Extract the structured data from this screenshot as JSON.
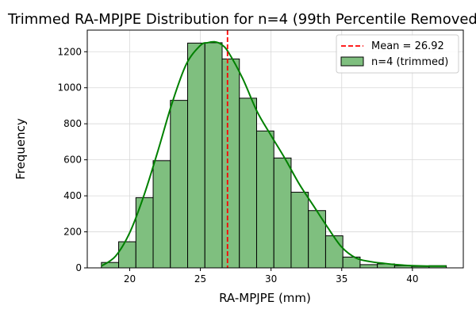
{
  "chart_data": {
    "type": "bar",
    "title": "Trimmed RA-MPJPE Distribution for n=4 (99th Percentile Removed)",
    "xlabel": "RA-MPJPE (mm)",
    "ylabel": "Frequency",
    "xlim": [
      17.0,
      43.6
    ],
    "ylim": [
      0,
      1320
    ],
    "xticks": [
      20,
      25,
      30,
      35,
      40
    ],
    "yticks": [
      0,
      200,
      400,
      600,
      800,
      1000,
      1200
    ],
    "grid": true,
    "legend_position": "top-right",
    "bins": {
      "edges": [
        18.0,
        19.22,
        20.44,
        21.66,
        22.88,
        24.1,
        25.32,
        26.54,
        27.76,
        28.98,
        30.2,
        31.42,
        32.64,
        33.86,
        35.08,
        36.3,
        37.52,
        38.74,
        39.96,
        41.18,
        42.4
      ],
      "counts": [
        30,
        145,
        390,
        595,
        930,
        1248,
        1250,
        1160,
        942,
        760,
        610,
        420,
        318,
        178,
        60,
        18,
        22,
        12,
        8,
        12
      ]
    },
    "kde": {
      "x": [
        18.0,
        19.0,
        20.0,
        21.0,
        22.0,
        23.0,
        24.0,
        25.0,
        25.5,
        26.0,
        26.5,
        27.0,
        28.0,
        29.0,
        30.0,
        31.0,
        32.0,
        33.0,
        34.0,
        35.0,
        36.0,
        37.0,
        38.0,
        39.0,
        40.0,
        41.0,
        42.4
      ],
      "y": [
        10,
        65,
        195,
        400,
        650,
        915,
        1130,
        1235,
        1250,
        1255,
        1240,
        1195,
        1050,
        870,
        735,
        605,
        465,
        345,
        225,
        115,
        55,
        35,
        25,
        17,
        12,
        10,
        10
      ]
    },
    "mean": {
      "value": 26.92,
      "label": "Mean = 26.92"
    },
    "series": [
      {
        "name": "n=4 (trimmed)",
        "kind": "histogram"
      }
    ],
    "colors": {
      "bar_fill": "#7fbf7f",
      "bar_edge": "#000000",
      "kde": "#008000",
      "mean_line": "#ff0000",
      "grid": "#d8d8d8"
    }
  }
}
